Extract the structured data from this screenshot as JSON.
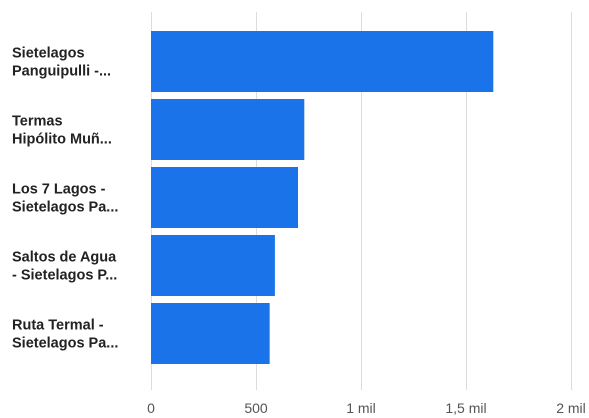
{
  "chart_data": {
    "type": "bar",
    "orientation": "horizontal",
    "categories": [
      [
        "Sietelagos",
        "Panguipulli -..."
      ],
      [
        "Termas",
        "Hipólito Muñ..."
      ],
      [
        "Los 7 Lagos -",
        "Sietelagos Pa..."
      ],
      [
        "Saltos de Agua",
        "- Sietelagos P..."
      ],
      [
        "Ruta Termal -",
        "Sietelagos Pa..."
      ]
    ],
    "values": [
      1630,
      730,
      700,
      590,
      565
    ],
    "xlim": [
      0,
      2000
    ],
    "ticks": [
      0,
      500,
      1000,
      1500,
      2000
    ],
    "tick_labels": [
      "0",
      "500",
      "1 mil",
      "1,5 mil",
      "2 mil"
    ],
    "grid": true,
    "bar_color": "#1a73e8",
    "title": "",
    "xlabel": "",
    "ylabel": ""
  }
}
